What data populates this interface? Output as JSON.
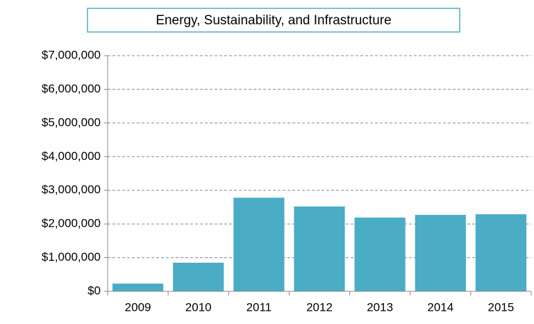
{
  "chart_data": {
    "type": "bar",
    "title": "Energy, Sustainability, and Infrastructure",
    "categories": [
      "2009",
      "2010",
      "2011",
      "2012",
      "2013",
      "2014",
      "2015"
    ],
    "values": [
      230000,
      850000,
      2780000,
      2520000,
      2190000,
      2270000,
      2290000
    ],
    "color": "#4bacc6",
    "ylim": [
      0,
      7000000
    ],
    "yticks": [
      {
        "value": 0,
        "label": "$0"
      },
      {
        "value": 1000000,
        "label": "$1,000,000"
      },
      {
        "value": 2000000,
        "label": "$2,000,000"
      },
      {
        "value": 3000000,
        "label": "$3,000,000"
      },
      {
        "value": 4000000,
        "label": "$4,000,000"
      },
      {
        "value": 5000000,
        "label": "$5,000,000"
      },
      {
        "value": 6000000,
        "label": "$6,000,000"
      },
      {
        "value": 7000000,
        "label": "$7,000,000"
      }
    ],
    "grid": true
  }
}
